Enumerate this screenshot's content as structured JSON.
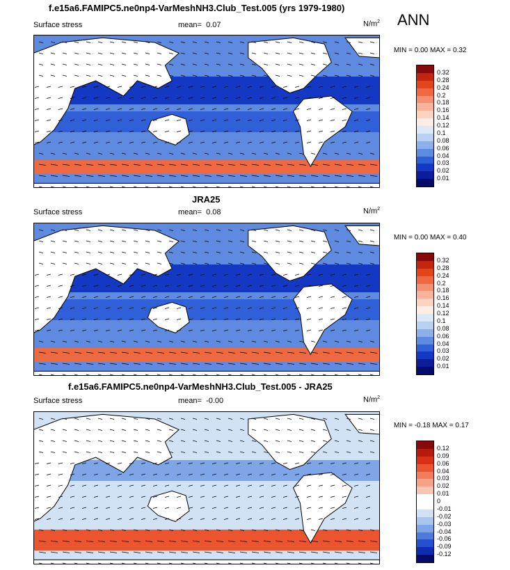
{
  "season": "ANN",
  "panels": [
    {
      "title": "f.e15a6.FAMIPC5.ne0np4-VarMeshNH3.Club_Test.005 (yrs 1979-1980)",
      "variable": "Surface stress",
      "mean_label": "mean=",
      "mean_value": "0.07",
      "units": "N/m",
      "units_sup": "2",
      "minmax": "MIN =  0.00 MAX =  0.32",
      "levels": [
        "0.32",
        "0.28",
        "0.24",
        "0.2",
        "0.18",
        "0.16",
        "0.14",
        "0.12",
        "0.1",
        "0.08",
        "0.06",
        "0.04",
        "0.03",
        "0.02",
        "0.01"
      ],
      "colors": [
        "#870a0a",
        "#c2260f",
        "#e0451c",
        "#ef6940",
        "#f59072",
        "#f8b39a",
        "#fbd3c0",
        "#fdeee5",
        "#dbe8f7",
        "#b8d1f2",
        "#8cb1ea",
        "#5e8ae0",
        "#3060d7",
        "#1238c4",
        "#0b1d9a",
        "#060a6b"
      ]
    },
    {
      "title": "JRA25",
      "variable": "Surface stress",
      "mean_label": "mean=",
      "mean_value": "0.08",
      "units": "N/m",
      "units_sup": "2",
      "minmax": "MIN =  0.00 MAX =  0.40",
      "levels": [
        "0.32",
        "0.28",
        "0.24",
        "0.2",
        "0.18",
        "0.16",
        "0.14",
        "0.12",
        "0.1",
        "0.08",
        "0.06",
        "0.04",
        "0.03",
        "0.02",
        "0.01"
      ],
      "colors": [
        "#870a0a",
        "#c2260f",
        "#e0451c",
        "#ef6940",
        "#f59072",
        "#f8b39a",
        "#fbd3c0",
        "#fdeee5",
        "#dbe8f7",
        "#b8d1f2",
        "#8cb1ea",
        "#5e8ae0",
        "#3060d7",
        "#1238c4",
        "#0b1d9a",
        "#060a6b"
      ]
    },
    {
      "title": "f.e15a6.FAMIPC5.ne0np4-VarMeshNH3.Club_Test.005 - JRA25",
      "variable": "Surface stress",
      "mean_label": "mean=",
      "mean_value": "-0.00",
      "units": "N/m",
      "units_sup": "2",
      "minmax": "MIN = -0.18 MAX =  0.17",
      "levels": [
        "0.12",
        "0.09",
        "0.06",
        "0.04",
        "0.03",
        "0.02",
        "0.01",
        "0",
        "-0.01",
        "-0.02",
        "-0.03",
        "-0.04",
        "-0.06",
        "-0.09",
        "-0.12"
      ],
      "colors": [
        "#870a0a",
        "#b51a0c",
        "#d73015",
        "#ea5530",
        "#f27c5c",
        "#f6a286",
        "#f9c6b2",
        "#ffffff",
        "#ffffff",
        "#d2e2f5",
        "#a9c6ee",
        "#7ea6e6",
        "#4f7bdc",
        "#2550cf",
        "#0d2cb2",
        "#060a6b"
      ]
    }
  ],
  "chart_data": {
    "type": "heatmap",
    "description_fields": "global maps of annual mean surface stress with wind-stress vectors",
    "maps": [
      {
        "name": "model",
        "mean": 0.07,
        "min": 0.0,
        "max": 0.32
      },
      {
        "name": "JRA25",
        "mean": 0.08,
        "min": 0.0,
        "max": 0.4
      },
      {
        "name": "model - JRA25",
        "mean": -0.0,
        "min": -0.18,
        "max": 0.17
      }
    ]
  }
}
